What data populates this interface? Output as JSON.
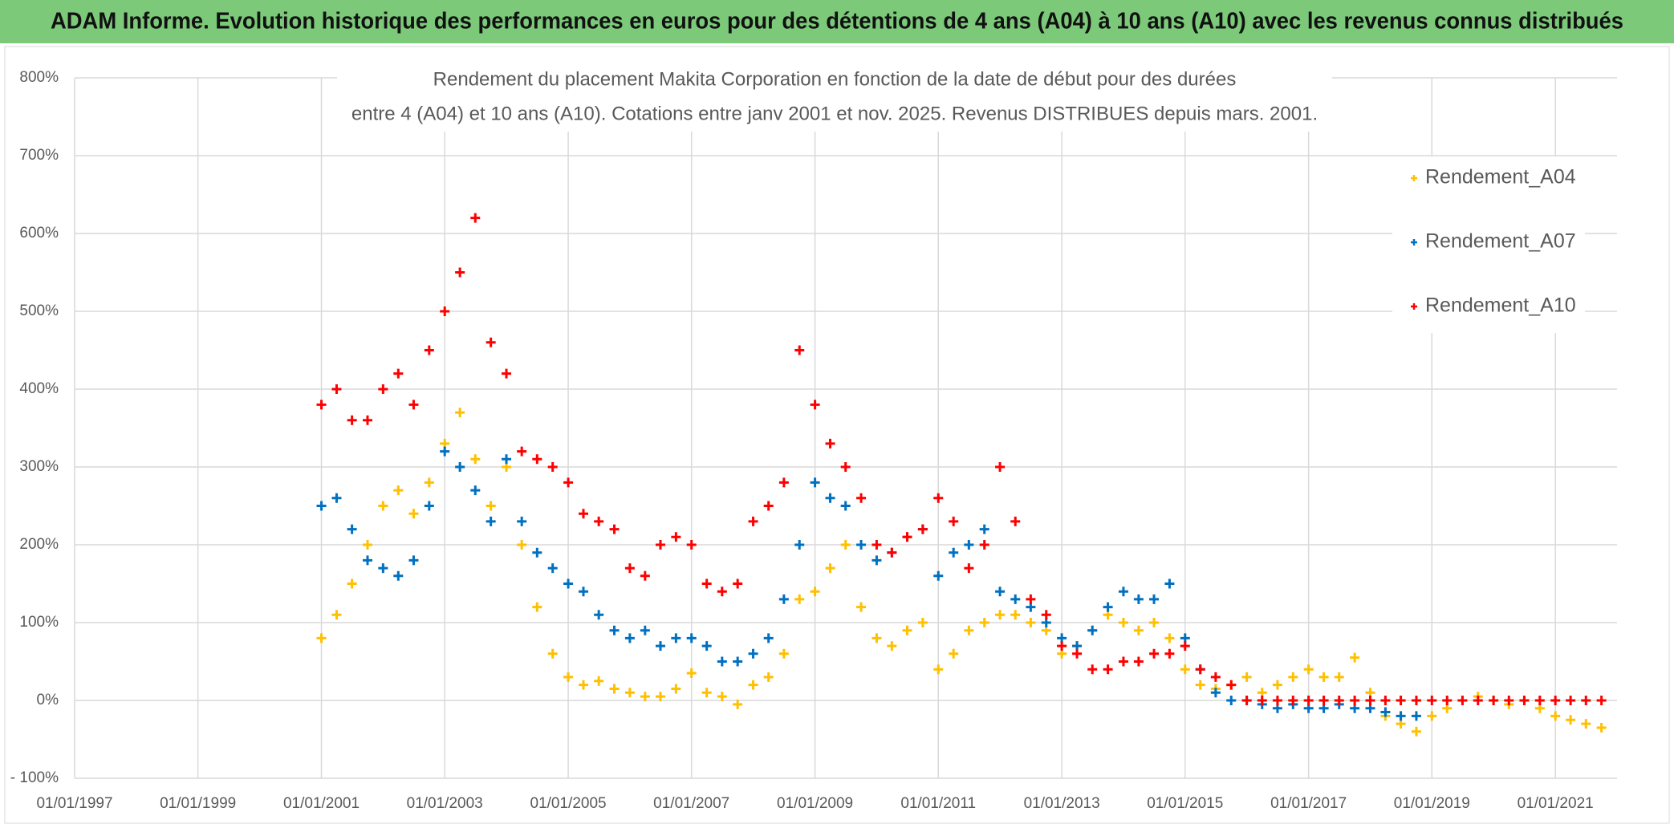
{
  "header": "ADAM Informe. Evolution historique des performances en euros pour des détentions de 4 ans (A04) à 10 ans (A10) avec les revenus connus distribués",
  "chart_data": {
    "type": "scatter",
    "title": [
      "Rendement du placement Makita Corporation en fonction de la date de début pour des durées",
      "entre 4 (A04) et 10 ans (A10). Cotations entre janv 2001 et nov. 2025. Revenus DISTRIBUES depuis mars. 2001."
    ],
    "xlim": [
      "01/01/1997",
      "01/01/2022"
    ],
    "xticks": [
      "01/01/1997",
      "01/01/1999",
      "01/01/2001",
      "01/01/2003",
      "01/01/2005",
      "01/01/2007",
      "01/01/2009",
      "01/01/2011",
      "01/01/2013",
      "01/01/2015",
      "01/01/2017",
      "01/01/2019",
      "01/01/2021"
    ],
    "ylim": [
      -100,
      800
    ],
    "yticks": [
      {
        "value": -100,
        "label": "- 100%"
      },
      {
        "value": 0,
        "label": "0%"
      },
      {
        "value": 100,
        "label": "100%"
      },
      {
        "value": 200,
        "label": "200%"
      },
      {
        "value": 300,
        "label": "300%"
      },
      {
        "value": 400,
        "label": "400%"
      },
      {
        "value": 500,
        "label": "500%"
      },
      {
        "value": 600,
        "label": "600%"
      },
      {
        "value": 700,
        "label": "700%"
      },
      {
        "value": 800,
        "label": "800%"
      }
    ],
    "grid": true,
    "legend": "right",
    "series": [
      {
        "name": "Rendement_A04",
        "color": "#FFC000",
        "x": [
          "01/01/2001",
          "01/04/2001",
          "01/07/2001",
          "01/10/2001",
          "01/01/2002",
          "01/04/2002",
          "01/07/2002",
          "01/10/2002",
          "01/01/2003",
          "01/04/2003",
          "01/07/2003",
          "01/10/2003",
          "01/01/2004",
          "01/04/2004",
          "01/07/2004",
          "01/10/2004",
          "01/01/2005",
          "01/04/2005",
          "01/07/2005",
          "01/10/2005",
          "01/01/2006",
          "01/04/2006",
          "01/07/2006",
          "01/10/2006",
          "01/01/2007",
          "01/04/2007",
          "01/07/2007",
          "01/10/2007",
          "01/01/2008",
          "01/04/2008",
          "01/07/2008",
          "01/10/2008",
          "01/01/2009",
          "01/04/2009",
          "01/07/2009",
          "01/10/2009",
          "01/01/2010",
          "01/04/2010",
          "01/07/2010",
          "01/10/2010",
          "01/01/2011",
          "01/04/2011",
          "01/07/2011",
          "01/10/2011",
          "01/01/2012",
          "01/04/2012",
          "01/07/2012",
          "01/10/2012",
          "01/01/2013",
          "01/04/2013",
          "01/07/2013",
          "01/10/2013",
          "01/01/2014",
          "01/04/2014",
          "01/07/2014",
          "01/10/2014",
          "01/01/2015",
          "01/04/2015",
          "01/07/2015",
          "01/10/2015",
          "01/01/2016",
          "01/04/2016",
          "01/07/2016",
          "01/10/2016",
          "01/01/2017",
          "01/04/2017",
          "01/07/2017",
          "01/10/2017",
          "01/01/2018",
          "01/04/2018",
          "01/07/2018",
          "01/10/2018",
          "01/01/2019",
          "01/04/2019",
          "01/07/2019",
          "01/10/2019",
          "01/01/2020",
          "01/04/2020",
          "01/07/2020",
          "01/10/2020",
          "01/01/2021",
          "01/04/2021",
          "01/07/2021",
          "01/10/2021"
        ],
        "values": [
          80,
          110,
          150,
          200,
          250,
          270,
          240,
          280,
          330,
          370,
          310,
          250,
          300,
          200,
          120,
          60,
          30,
          20,
          25,
          15,
          10,
          5,
          5,
          15,
          35,
          10,
          5,
          -5,
          20,
          30,
          60,
          130,
          140,
          170,
          200,
          120,
          80,
          70,
          90,
          100,
          40,
          60,
          90,
          100,
          110,
          110,
          100,
          90,
          60,
          70,
          90,
          110,
          100,
          90,
          100,
          80,
          40,
          20,
          15,
          20,
          30,
          10,
          20,
          30,
          40,
          30,
          30,
          55,
          10,
          -20,
          -30,
          -40,
          -20,
          -10,
          0,
          5,
          0,
          -5,
          0,
          -10,
          -20,
          -25,
          -30,
          -35
        ]
      },
      {
        "name": "Rendement_A07",
        "color": "#0070C0",
        "x": [
          "01/01/2001",
          "01/04/2001",
          "01/07/2001",
          "01/10/2001",
          "01/01/2002",
          "01/04/2002",
          "01/07/2002",
          "01/10/2002",
          "01/01/2003",
          "01/04/2003",
          "01/07/2003",
          "01/10/2003",
          "01/01/2004",
          "01/04/2004",
          "01/07/2004",
          "01/10/2004",
          "01/01/2005",
          "01/04/2005",
          "01/07/2005",
          "01/10/2005",
          "01/01/2006",
          "01/04/2006",
          "01/07/2006",
          "01/10/2006",
          "01/01/2007",
          "01/04/2007",
          "01/07/2007",
          "01/10/2007",
          "01/01/2008",
          "01/04/2008",
          "01/07/2008",
          "01/10/2008",
          "01/01/2009",
          "01/04/2009",
          "01/07/2009",
          "01/10/2009",
          "01/01/2010",
          "01/04/2010",
          "01/07/2010",
          "01/10/2010",
          "01/01/2011",
          "01/04/2011",
          "01/07/2011",
          "01/10/2011",
          "01/01/2012",
          "01/04/2012",
          "01/07/2012",
          "01/10/2012",
          "01/01/2013",
          "01/04/2013",
          "01/07/2013",
          "01/10/2013",
          "01/01/2014",
          "01/04/2014",
          "01/07/2014",
          "01/10/2014",
          "01/01/2015",
          "01/04/2015",
          "01/07/2015",
          "01/10/2015",
          "01/01/2016",
          "01/04/2016",
          "01/07/2016",
          "01/10/2016",
          "01/01/2017",
          "01/04/2017",
          "01/07/2017",
          "01/10/2017",
          "01/01/2018",
          "01/04/2018",
          "01/07/2018",
          "01/10/2018"
        ],
        "values": [
          250,
          260,
          220,
          180,
          170,
          160,
          180,
          250,
          320,
          300,
          270,
          230,
          310,
          230,
          190,
          170,
          150,
          140,
          110,
          90,
          80,
          90,
          70,
          80,
          80,
          70,
          50,
          50,
          60,
          80,
          130,
          200,
          280,
          260,
          250,
          200,
          180,
          190,
          210,
          220,
          160,
          190,
          200,
          220,
          140,
          130,
          120,
          100,
          80,
          70,
          90,
          120,
          140,
          130,
          130,
          150,
          80,
          40,
          10,
          0,
          0,
          -5,
          -10,
          -5,
          -10,
          -10,
          -5,
          -10,
          -10,
          -15,
          -20,
          -20
        ]
      },
      {
        "name": "Rendement_A10",
        "color": "#FF0000",
        "x": [
          "01/01/2001",
          "01/04/2001",
          "01/07/2001",
          "01/10/2001",
          "01/01/2002",
          "01/04/2002",
          "01/07/2002",
          "01/10/2002",
          "01/01/2003",
          "01/04/2003",
          "01/07/2003",
          "01/10/2003",
          "01/01/2004",
          "01/04/2004",
          "01/07/2004",
          "01/10/2004",
          "01/01/2005",
          "01/04/2005",
          "01/07/2005",
          "01/10/2005",
          "01/01/2006",
          "01/04/2006",
          "01/07/2006",
          "01/10/2006",
          "01/01/2007",
          "01/04/2007",
          "01/07/2007",
          "01/10/2007",
          "01/01/2008",
          "01/04/2008",
          "01/07/2008",
          "01/10/2008",
          "01/01/2009",
          "01/04/2009",
          "01/07/2009",
          "01/10/2009",
          "01/01/2010",
          "01/04/2010",
          "01/07/2010",
          "01/10/2010",
          "01/01/2011",
          "01/04/2011",
          "01/07/2011",
          "01/10/2011",
          "01/01/2012",
          "01/04/2012",
          "01/07/2012",
          "01/10/2012",
          "01/01/2013",
          "01/04/2013",
          "01/07/2013",
          "01/10/2013",
          "01/01/2014",
          "01/04/2014",
          "01/07/2014",
          "01/10/2014",
          "01/01/2015",
          "01/04/2015",
          "01/07/2015",
          "01/10/2015",
          "01/01/2016",
          "01/04/2016",
          "01/07/2016",
          "01/10/2016",
          "01/01/2017",
          "01/04/2017",
          "01/07/2017",
          "01/10/2017",
          "01/01/2018",
          "01/04/2018",
          "01/07/2018",
          "01/10/2018",
          "01/01/2019",
          "01/04/2019",
          "01/07/2019",
          "01/10/2019",
          "01/01/2020",
          "01/04/2020",
          "01/07/2020",
          "01/10/2020",
          "01/01/2021",
          "01/04/2021",
          "01/07/2021",
          "01/10/2021"
        ],
        "values": [
          380,
          400,
          360,
          360,
          400,
          420,
          380,
          450,
          500,
          550,
          620,
          460,
          420,
          320,
          310,
          300,
          280,
          240,
          230,
          220,
          170,
          160,
          200,
          210,
          200,
          150,
          140,
          150,
          230,
          250,
          280,
          450,
          380,
          330,
          300,
          260,
          200,
          190,
          210,
          220,
          260,
          230,
          170,
          200,
          300,
          230,
          130,
          110,
          70,
          60,
          40,
          40,
          50,
          50,
          60,
          60,
          70,
          40,
          30,
          20,
          0,
          0,
          0,
          0,
          0,
          0,
          0,
          0,
          0,
          0,
          0,
          0,
          0,
          0,
          0,
          0,
          0,
          0,
          0,
          0,
          0,
          0,
          0,
          0
        ]
      }
    ]
  }
}
